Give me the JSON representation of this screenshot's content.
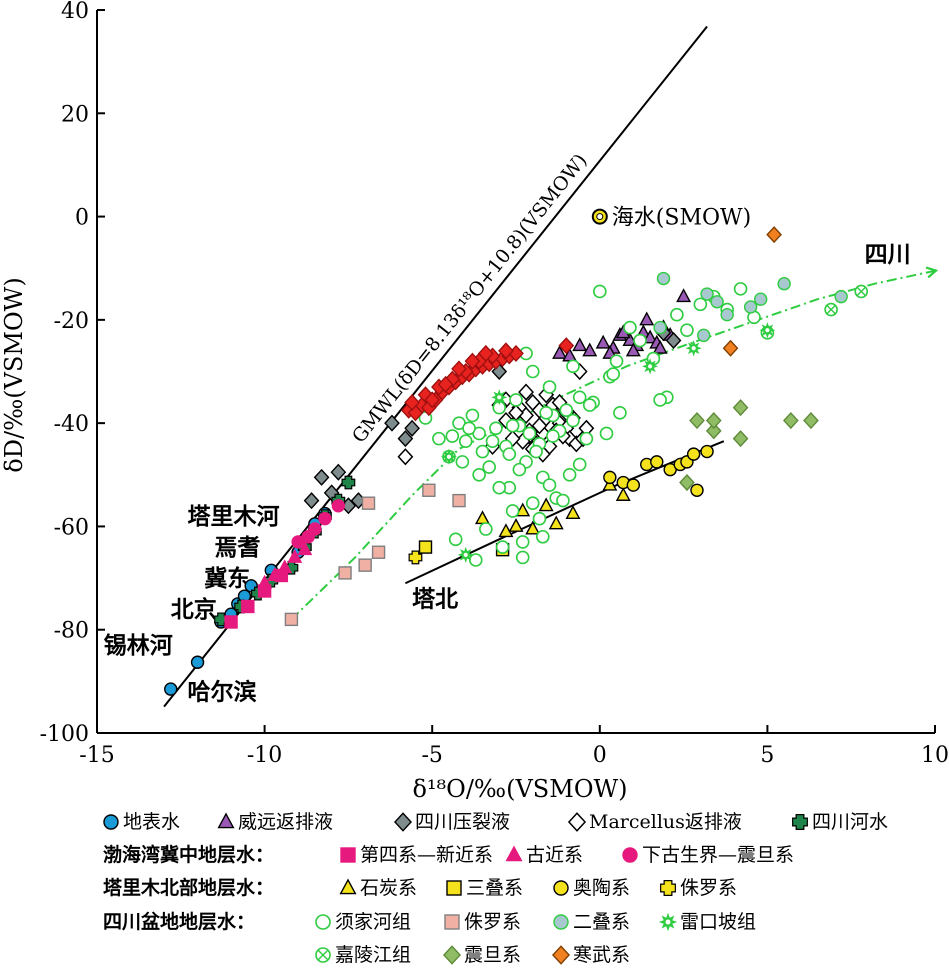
{
  "chart_data": {
    "type": "scatter",
    "xlabel": "δ¹⁸O/‰(VSMOW)",
    "ylabel": "δD/‰(VSMOW)",
    "xlim": [
      -15,
      10
    ],
    "ylim": [
      -100,
      40
    ],
    "xticks": [
      -15,
      -10,
      -5,
      0,
      5,
      10
    ],
    "yticks": [
      -100,
      -80,
      -60,
      -40,
      -20,
      0,
      20,
      40
    ],
    "xtick_labels": [
      "-15",
      "-10",
      "-5",
      "0",
      "5",
      "10"
    ],
    "ytick_labels": [
      "-100",
      "-80",
      "-60",
      "-40",
      "-20",
      "0",
      "20",
      "40"
    ],
    "gmwl": {
      "label": "GMWL(δD=8.13δ¹⁸O+10.8)(VSMOW)",
      "slope": 8.13,
      "intercept": 10.8,
      "x_range": [
        -13,
        3.2
      ]
    },
    "seawater": {
      "label": "海水(SMOW)",
      "x": 0,
      "y": 0
    },
    "place_labels": [
      {
        "text": "塔里木河",
        "x": -12.3,
        "y": -59.5
      },
      {
        "text": "焉耆",
        "x": -11.5,
        "y": -65.5
      },
      {
        "text": "冀东",
        "x": -11.8,
        "y": -71.5
      },
      {
        "text": "北京",
        "x": -12.8,
        "y": -77.5
      },
      {
        "text": "锡林河",
        "x": -14.8,
        "y": -84.5
      },
      {
        "text": "哈尔滨",
        "x": -12.3,
        "y": -93.5
      }
    ],
    "tabei_line": {
      "label": "塔北",
      "label_x": -5.6,
      "label_y": -75.5,
      "x": [
        -5.8,
        -3.0,
        0.5,
        3.7
      ],
      "y": [
        -71.0,
        -62.5,
        -52.0,
        -43.5
      ]
    },
    "sichuan_trend": {
      "label": "四川",
      "label_x": 7.9,
      "label_y": -8.8,
      "x": [
        -9.2,
        -7.3,
        -5.6,
        -4.2,
        -3.0,
        -1.2,
        0.8,
        2.5,
        4.5,
        6.5,
        8.2,
        10.0
      ],
      "y": [
        -78.0,
        -66.0,
        -54.0,
        -45.0,
        -41.0,
        -35.0,
        -29.0,
        -25.0,
        -20.5,
        -16.0,
        -13.0,
        -10.5
      ]
    },
    "series": [
      {
        "name": "地表水",
        "marker": "circle",
        "fill": "#1a9ad6",
        "stroke": "#000000",
        "x": [
          -12.8,
          -12.0,
          -11.3,
          -11.0,
          -10.8,
          -10.6,
          -10.4,
          -9.8,
          -9.0,
          -8.5,
          -8.2
        ],
        "y": [
          -91.5,
          -86.3,
          -78.5,
          -77.0,
          -75.0,
          -73.5,
          -71.5,
          -68.5,
          -65.0,
          -59.5,
          -57.5
        ]
      },
      {
        "name": "威远返排液",
        "marker": "triangle",
        "fill": "#9b59b6",
        "stroke": "#000000",
        "x": [
          -1.2,
          -0.6,
          -0.3,
          0.1,
          0.4,
          0.6,
          0.9,
          1.1,
          1.3,
          1.5,
          1.7,
          1.9,
          2.1,
          2.5,
          -0.9,
          0.3,
          1.0,
          1.4,
          0.7,
          1.8
        ],
        "y": [
          -26.5,
          -25.0,
          -26.0,
          -24.5,
          -25.5,
          -23.0,
          -24.0,
          -25.0,
          -22.5,
          -23.5,
          -24.5,
          -21.5,
          -23.0,
          -15.5,
          -27.0,
          -26.5,
          -26.0,
          -20.0,
          -22.5,
          -25.5
        ]
      },
      {
        "name": "四川压裂液",
        "marker": "diamond",
        "fill": "#7f8c8d",
        "stroke": "#000000",
        "x": [
          -6.2,
          -5.6,
          -5.8,
          -3.5,
          -3.0,
          -7.5,
          -7.8,
          -8.6,
          -8.3,
          -7.2,
          -8.0,
          1.9,
          2.2
        ],
        "y": [
          -40.0,
          -41.0,
          -43.0,
          -27.5,
          -30.0,
          -56.0,
          -49.5,
          -55.0,
          -50.5,
          -55.0,
          -53.5,
          -22.5,
          -24.0
        ]
      },
      {
        "name": "Marcellus返排液",
        "marker": "diamond-open",
        "fill": "#ffffff",
        "stroke": "#000000",
        "x": [
          -5.8,
          -3.2,
          -2.8,
          -2.4,
          -2.2,
          -2.0,
          -1.8,
          -1.6,
          -1.4,
          -1.2,
          -1.0,
          -0.8,
          -2.6,
          -2.1,
          -1.7,
          -1.3,
          -0.9,
          -2.3,
          -1.9,
          -1.5,
          -1.1,
          -0.7,
          -2.5,
          -1.6,
          -2.0,
          -1.4,
          -0.5,
          -2.8,
          -1.8,
          -1.2,
          -3.0,
          -2.2,
          -1.0,
          -0.4,
          -1.7,
          -2.6,
          -0.6
        ],
        "y": [
          -46.5,
          -44.5,
          -35.5,
          -37.0,
          -38.5,
          -36.0,
          -37.5,
          -39.0,
          -38.0,
          -40.0,
          -41.0,
          -39.0,
          -40.5,
          -41.5,
          -42.0,
          -41.5,
          -43.0,
          -43.5,
          -44.0,
          -44.5,
          -42.5,
          -44.0,
          -38.0,
          -34.5,
          -45.0,
          -36.5,
          -43.0,
          -39.5,
          -40.5,
          -36.0,
          -36.5,
          -34.0,
          -38.0,
          -41.0,
          -46.0,
          -43.0,
          -30.0
        ]
      },
      {
        "name": "四川河水",
        "marker": "plus-round",
        "fill": "#1e8449",
        "stroke": "#000000",
        "x": [
          -11.3,
          -10.7,
          -10.2,
          -9.8,
          -9.2,
          -8.8,
          -8.5,
          -8.2,
          -7.8,
          -7.5
        ],
        "y": [
          -78.0,
          -75.5,
          -73.0,
          -70.5,
          -68.0,
          -64.0,
          -61.0,
          -58.0,
          -55.0,
          -51.5
        ]
      },
      {
        "name": "第四系—新近系",
        "marker": "square",
        "fill": "#e6197e",
        "stroke": "#e6197e",
        "x": [
          -11.0,
          -10.5,
          -10.0,
          -9.5
        ],
        "y": [
          -78.5,
          -75.5,
          -72.5,
          -69.5
        ]
      },
      {
        "name": "古近系",
        "marker": "triangle",
        "fill": "#e6197e",
        "stroke": "#e6197e",
        "x": [
          -10.0,
          -9.7,
          -9.4,
          -9.1,
          -8.8
        ],
        "y": [
          -71.0,
          -69.5,
          -68.0,
          -66.0,
          -64.5
        ]
      },
      {
        "name": "下古生界—震旦系",
        "marker": "circle",
        "fill": "#e6197e",
        "stroke": "#e6197e",
        "x": [
          -9.0,
          -8.7,
          -8.5,
          -8.2,
          -7.8
        ],
        "y": [
          -63.0,
          -62.0,
          -60.5,
          -58.5,
          -56.0
        ]
      },
      {
        "name": "石炭系",
        "marker": "triangle",
        "fill": "#f4e21d",
        "stroke": "#000000",
        "x": [
          -3.5,
          -2.8,
          -2.5,
          -2.3,
          -2.0,
          -1.6,
          -1.3,
          -0.8,
          0.3,
          0.7
        ],
        "y": [
          -58.5,
          -61.0,
          -60.0,
          -57.0,
          -60.5,
          -56.0,
          -59.5,
          -57.5,
          -52.0,
          -54.0
        ]
      },
      {
        "name": "三叠系",
        "marker": "square",
        "fill": "#f4e21d",
        "stroke": "#000000",
        "x": [
          -5.2,
          -2.9
        ],
        "y": [
          -64.0,
          -64.5
        ]
      },
      {
        "name": "奥陶系",
        "marker": "circle",
        "fill": "#f4e21d",
        "stroke": "#000000",
        "x": [
          0.7,
          1.4,
          1.7,
          2.1,
          2.4,
          2.6,
          2.9,
          3.2,
          0.3,
          1.0,
          2.8
        ],
        "y": [
          -51.5,
          -48.0,
          -47.5,
          -49.0,
          -48.0,
          -47.5,
          -53.0,
          -45.5,
          -50.5,
          -52.0,
          -46.0
        ]
      },
      {
        "name": "侏罗系",
        "marker": "plus-round",
        "fill": "#f4e21d",
        "stroke": "#000000",
        "x": [
          -5.5
        ],
        "y": [
          -66.0
        ]
      },
      {
        "name": "须家河组",
        "marker": "circle-open",
        "fill": "#ffffff",
        "stroke": "#2ecc40",
        "x": [
          -5.2,
          -4.8,
          -4.5,
          -4.2,
          -4.0,
          -3.8,
          -3.6,
          -3.5,
          -3.3,
          -3.1,
          -3.0,
          -2.8,
          -2.7,
          -2.5,
          -2.4,
          -2.2,
          -2.0,
          -1.8,
          -1.7,
          -1.5,
          -1.4,
          -1.2,
          -1.0,
          -0.8,
          -0.6,
          -0.4,
          -0.2,
          0.0,
          0.3,
          0.6,
          0.9,
          1.2,
          1.6,
          2.0,
          2.3,
          2.6,
          3.0,
          3.4,
          3.8,
          4.2,
          4.6,
          5.0,
          -2.6,
          -2.0,
          -1.5,
          -0.9,
          -3.4,
          -2.9,
          -2.3,
          -1.8,
          -1.3,
          -0.6,
          0.2,
          -4.4,
          -3.9,
          -3.2,
          -2.6,
          -2.1,
          -1.6,
          -4.1,
          -3.6,
          -3.0,
          -2.4,
          -1.9,
          -0.3,
          0.4,
          1.8,
          -2.3,
          -1.7,
          -1.1,
          -3.7,
          -2.2,
          -4.3,
          -2.7,
          -1.4,
          -0.8,
          0.5
        ],
        "y": [
          -39.0,
          -43.0,
          -46.5,
          -40.0,
          -43.5,
          -38.5,
          -42.0,
          -45.5,
          -48.5,
          -41.0,
          -37.0,
          -44.5,
          -52.5,
          -35.5,
          -40.5,
          -47.5,
          -30.0,
          -44.0,
          -50.5,
          -33.0,
          -38.5,
          -41.5,
          -37.5,
          -29.0,
          -35.0,
          -43.0,
          -36.0,
          -14.5,
          -31.0,
          -38.0,
          -21.5,
          -24.0,
          -27.5,
          -35.0,
          -19.0,
          -22.0,
          -17.0,
          -15.5,
          -18.0,
          -14.0,
          -19.5,
          -22.5,
          -57.0,
          -55.5,
          -52.0,
          -50.0,
          -60.5,
          -64.0,
          -63.0,
          -58.5,
          -54.5,
          -48.0,
          -42.0,
          -42.5,
          -41.0,
          -43.5,
          -40.5,
          -42.0,
          -38.0,
          -47.5,
          -50.0,
          -52.5,
          -49.0,
          -45.5,
          -36.5,
          -30.5,
          -35.5,
          -66.0,
          -62.0,
          -55.0,
          -66.5,
          -26.5,
          -62.5,
          -46.0,
          -42.5,
          -39.5,
          -28.0
        ]
      },
      {
        "name": "侏罗系",
        "marker": "square",
        "fill": "#f0b0a4",
        "stroke": "#7f7f7f",
        "x": [
          -9.2,
          -7.6,
          -7.0,
          -6.6,
          -5.1,
          -4.2,
          -6.9
        ],
        "y": [
          -78.0,
          -69.0,
          -67.5,
          -65.0,
          -53.0,
          -55.0,
          -55.5
        ]
      },
      {
        "name": "二叠系",
        "marker": "circle",
        "fill": "#a8c8cf",
        "stroke": "#2ecc40",
        "x": [
          1.9,
          3.2,
          3.5,
          3.8,
          4.8,
          5.5,
          7.2,
          1.8,
          4.5,
          3.1
        ],
        "y": [
          -12.0,
          -15.0,
          -16.5,
          -19.0,
          -16.0,
          -13.0,
          -15.5,
          -21.5,
          -17.5,
          -23.0
        ]
      },
      {
        "name": "雷口坡组",
        "marker": "star",
        "fill": "#ffffff",
        "stroke": "#2ecc40",
        "x": [
          -4.0,
          -3.0,
          1.5,
          -4.5,
          2.8,
          5.0
        ],
        "y": [
          -65.5,
          -35.0,
          -29.0,
          -46.5,
          -25.5,
          -22.0
        ]
      },
      {
        "name": "嘉陵江组",
        "marker": "circle-x",
        "fill": "#ffffff",
        "stroke": "#2ecc40",
        "x": [
          6.9,
          7.8
        ],
        "y": [
          -18.0,
          -14.5
        ]
      },
      {
        "name": "震旦系",
        "marker": "diamond",
        "fill": "#8fbc65",
        "stroke": "#5f8a3a",
        "x": [
          2.9,
          3.4,
          3.4,
          4.2,
          4.2,
          5.7,
          6.3,
          2.6
        ],
        "y": [
          -39.5,
          -41.5,
          -39.5,
          -43.0,
          -37.0,
          -39.5,
          -39.5,
          -51.5
        ]
      },
      {
        "name": "寒武系",
        "marker": "diamond",
        "fill": "#f08020",
        "stroke": "#7f4000",
        "x": [
          5.2,
          3.9
        ],
        "y": [
          -3.5,
          -25.5
        ]
      },
      {
        "name": "",
        "marker": "diamond",
        "fill": "#e8231f",
        "stroke": "#a01010",
        "x": [
          -5.7,
          -5.5,
          -5.3,
          -5.1,
          -4.9,
          -4.7,
          -4.5,
          -4.3,
          -4.1,
          -3.9,
          -3.7,
          -3.5,
          -3.3,
          -3.1,
          -2.9,
          -2.7,
          -2.5,
          -5.6,
          -5.2,
          -4.8,
          -4.4,
          -4.0,
          -3.6,
          -3.2,
          -2.8,
          -5.0,
          -4.6,
          -4.2,
          -3.8,
          -3.4,
          -1.0
        ],
        "y": [
          -37.5,
          -38.0,
          -36.5,
          -37.0,
          -35.5,
          -34.0,
          -33.0,
          -32.0,
          -31.0,
          -30.5,
          -29.5,
          -29.0,
          -28.5,
          -28.0,
          -27.5,
          -27.0,
          -26.5,
          -36.0,
          -34.5,
          -33.0,
          -31.5,
          -30.0,
          -28.0,
          -27.0,
          -26.0,
          -35.5,
          -32.5,
          -29.5,
          -28.0,
          -26.5,
          -25.0
        ]
      }
    ],
    "legend": [
      {
        "label": "地表水",
        "series": 0
      },
      {
        "label": "威远返排液",
        "series": 1
      },
      {
        "label": "四川压裂液",
        "series": 2
      },
      {
        "label": "Marcellus返排液",
        "series": 3
      },
      {
        "label": "四川河水",
        "series": 4
      }
    ],
    "legend_groups": [
      {
        "title": "渤海湾冀中地层水：",
        "items": [
          {
            "label": "第四系—新近系",
            "series": 5
          },
          {
            "label": "古近系",
            "series": 6
          },
          {
            "label": "下古生界—震旦系",
            "series": 7
          }
        ]
      },
      {
        "title": "塔里木北部地层水：",
        "items": [
          {
            "label": "石炭系",
            "series": 8
          },
          {
            "label": "三叠系",
            "series": 9
          },
          {
            "label": "奥陶系",
            "series": 10
          },
          {
            "label": "侏罗系",
            "series": 11
          }
        ]
      },
      {
        "title": "四川盆地地层水：",
        "items": [
          {
            "label": "须家河组",
            "series": 12
          },
          {
            "label": "侏罗系",
            "series": 13
          },
          {
            "label": "二叠系",
            "series": 14
          },
          {
            "label": "雷口坡组",
            "series": 15
          }
        ]
      },
      {
        "title": "",
        "items": [
          {
            "label": "嘉陵江组",
            "series": 16
          },
          {
            "label": "震旦系",
            "series": 17
          },
          {
            "label": "寒武系",
            "series": 18
          }
        ]
      }
    ]
  }
}
